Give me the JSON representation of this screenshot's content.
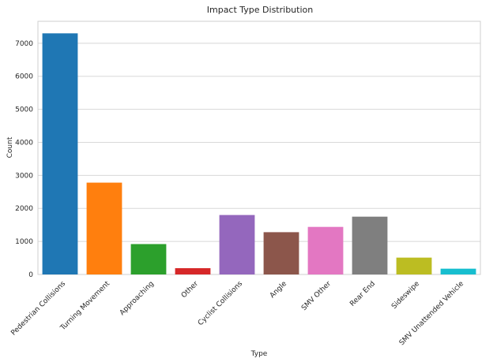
{
  "chart_data": {
    "type": "bar",
    "title": "Impact Type Distribution",
    "xlabel": "Type",
    "ylabel": "Count",
    "categories": [
      "Pedestrian Collisions",
      "Turning Movement",
      "Approaching",
      "Other",
      "Cyclist Collisions",
      "Angle",
      "SMV Other",
      "Rear End",
      "Sideswipe",
      "SMV Unattended Vehicle"
    ],
    "values": [
      7300,
      2780,
      920,
      190,
      1800,
      1280,
      1440,
      1750,
      510,
      175
    ],
    "colors": [
      "#1f77b4",
      "#ff7f0e",
      "#2ca02c",
      "#d62728",
      "#9467bd",
      "#8c564b",
      "#e377c2",
      "#7f7f7f",
      "#bcbd22",
      "#17becf"
    ],
    "ylim": [
      0,
      7665
    ],
    "yticks": [
      0,
      1000,
      2000,
      3000,
      4000,
      5000,
      6000,
      7000
    ],
    "grid": "y",
    "legend": "none"
  }
}
